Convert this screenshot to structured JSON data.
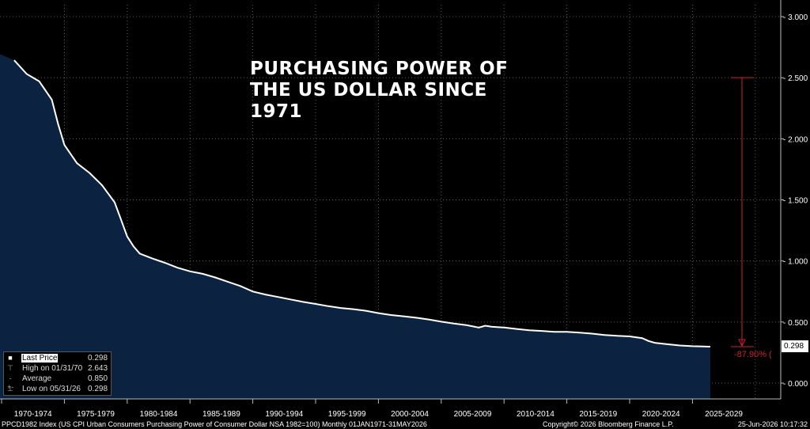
{
  "chart_data": {
    "type": "area",
    "title": "PURCHASING POWER OF\nTHE US DOLLAR SINCE\n1971",
    "x_categories": [
      "1970-1974",
      "1975-1979",
      "1980-1984",
      "1985-1989",
      "1990-1994",
      "1995-1999",
      "2000-2004",
      "2005-2009",
      "2010-2014",
      "2015-2019",
      "2020-2024",
      "2025-2029"
    ],
    "y_ticks": [
      "3.000",
      "2.500",
      "2.000",
      "1.500",
      "1.000",
      "0.500",
      "0.000"
    ],
    "ylim": [
      0,
      3.0
    ],
    "grid": true,
    "y_axis_position": "right",
    "colors": {
      "line": "#ffffff",
      "fill": "#0b2340",
      "annotation": "#cc1f2e",
      "grid": "#5a5a5a"
    },
    "series": [
      {
        "x": [
          1971.0,
          1972.0,
          1973.0,
          1974.0,
          1974.5,
          1975.0,
          1976.0,
          1977.0,
          1978.0,
          1979.0,
          1979.5,
          1980.0,
          1980.5,
          1981.0,
          1982.0,
          1983.0,
          1984.0,
          1985.0,
          1986.0,
          1987.0,
          1988.0,
          1989.0,
          1990.0,
          1991.0,
          1992.0,
          1993.0,
          1994.0,
          1995.0,
          1996.0,
          1997.0,
          1998.0,
          1999.0,
          2000.0,
          2001.0,
          2002.0,
          2003.0,
          2004.0,
          2005.0,
          2006.0,
          2007.0,
          2008.0,
          2008.5,
          2009.0,
          2010.0,
          2011.0,
          2012.0,
          2013.0,
          2014.0,
          2015.0,
          2016.0,
          2017.0,
          2018.0,
          2019.0,
          2020.0,
          2021.0,
          2021.5,
          2022.0,
          2023.0,
          2024.0,
          2025.0,
          2026.42
        ],
        "values": [
          2.643,
          2.53,
          2.47,
          2.32,
          2.12,
          1.95,
          1.8,
          1.72,
          1.62,
          1.48,
          1.34,
          1.2,
          1.12,
          1.06,
          1.02,
          0.985,
          0.945,
          0.915,
          0.895,
          0.865,
          0.83,
          0.795,
          0.75,
          0.725,
          0.705,
          0.685,
          0.665,
          0.648,
          0.63,
          0.615,
          0.605,
          0.592,
          0.573,
          0.557,
          0.547,
          0.535,
          0.521,
          0.503,
          0.487,
          0.474,
          0.455,
          0.47,
          0.462,
          0.455,
          0.443,
          0.433,
          0.427,
          0.42,
          0.42,
          0.413,
          0.405,
          0.394,
          0.387,
          0.382,
          0.368,
          0.345,
          0.33,
          0.318,
          0.308,
          0.302,
          0.298
        ]
      }
    ],
    "annotations": {
      "change_label": "-87.90% (",
      "from_value": 2.5,
      "to_value": 0.298,
      "last_value_label": "0.298"
    },
    "legend": {
      "placement": "bottom-left",
      "rows": [
        {
          "label": "Last Price",
          "value": "0.298"
        },
        {
          "label": "High on 01/31/70",
          "value": "2.643"
        },
        {
          "label": "Average",
          "value": "0.850"
        },
        {
          "label": "Low on 05/31/26",
          "value": "0.298"
        }
      ]
    }
  },
  "footer": {
    "left": "PPCD1982 Index (US CPI Urban Consumers Purchasing Power of Consumer Dollar NSA 1982=100) Monthly 01JAN1971-31MAY2026",
    "copyright": "Copyright© 2026 Bloomberg Finance L.P.",
    "timestamp": "25-Jun-2026 10:17:32"
  }
}
